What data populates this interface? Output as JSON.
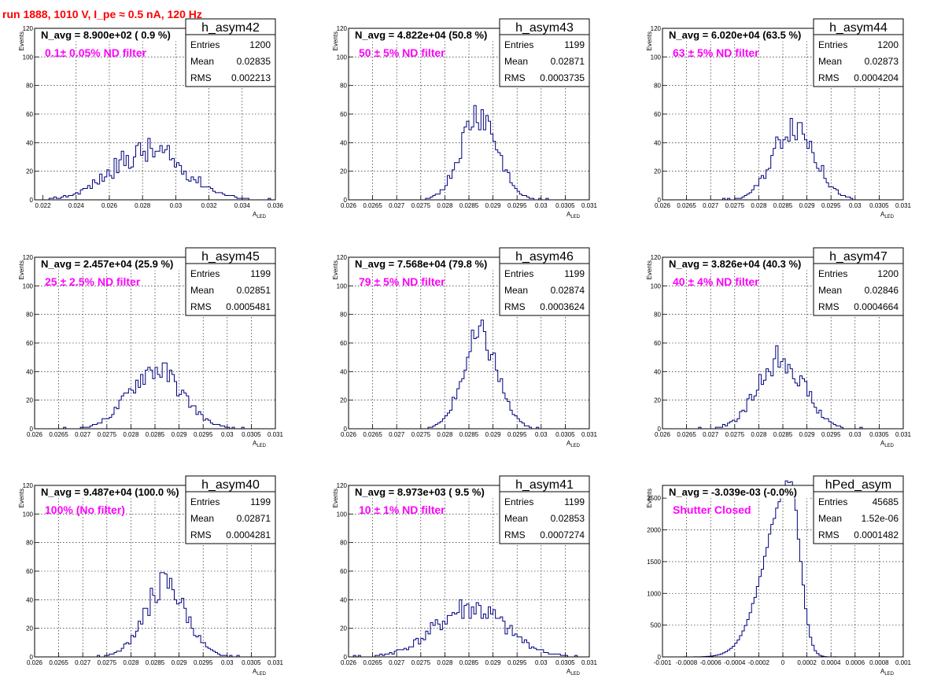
{
  "run_title": "run 1888,  1010 V, I_pe ≈ 0.5 nA, 120 Hz",
  "x_label_main": "A",
  "x_label_sub": "LED",
  "y_label": "Events",
  "stats_labels": [
    "Entries",
    "Mean",
    "RMS"
  ],
  "colors": {
    "hist": "#00007f",
    "title": "#ff0000",
    "annotation": "#ff00ff",
    "grid": "#000000"
  },
  "chart_data": [
    {
      "type": "bar",
      "name": "h_asym42",
      "navg": "N_avg = 8.900e+02 ( 0.9 %)",
      "annotation": "0.1± 0.05% ND filter",
      "entries": "1200",
      "mean": "0.02835",
      "rms": "0.002213",
      "xlim": [
        0.0215,
        0.036
      ],
      "ylim": [
        0,
        120
      ],
      "xticks": [
        0.022,
        0.024,
        0.026,
        0.028,
        0.03,
        0.032,
        0.034,
        0.036
      ],
      "xtick_labels": [
        "0.022",
        "0.024",
        "0.026",
        "0.028",
        "0.03",
        "0.032",
        "0.034",
        "0.036"
      ],
      "yticks": [
        0,
        20,
        40,
        60,
        80,
        100,
        120
      ],
      "ytick_labels": [
        "0",
        "20",
        "40",
        "60",
        "80",
        "100",
        "120"
      ],
      "grid": true,
      "dist": {
        "center": 0.02835,
        "sigma": 0.0022,
        "amp": 34,
        "n": 100,
        "seed": 42,
        "noise": 0.3,
        "start": 0.0215,
        "end": 0.036
      }
    },
    {
      "type": "bar",
      "name": "h_asym43",
      "navg": "N_avg = 4.822e+04 (50.8 %)",
      "annotation": "50 ± 5% ND filter",
      "entries": "1199",
      "mean": "0.02871",
      "rms": "0.0003735",
      "xlim": [
        0.026,
        0.031
      ],
      "ylim": [
        0,
        120
      ],
      "xticks": [
        0.026,
        0.0265,
        0.027,
        0.0275,
        0.028,
        0.0285,
        0.029,
        0.0295,
        0.03,
        0.0305,
        0.031
      ],
      "xtick_labels": [
        "0.026",
        "0.0265",
        "0.027",
        "0.0275",
        "0.028",
        "0.0285",
        "0.029",
        "0.0295",
        "0.03",
        "0.0305",
        "0.031"
      ],
      "yticks": [
        0,
        20,
        40,
        60,
        80,
        100,
        120
      ],
      "ytick_labels": [
        "0",
        "20",
        "40",
        "60",
        "80",
        "100",
        "120"
      ],
      "grid": true,
      "dist": {
        "center": 0.02871,
        "sigma": 0.000374,
        "amp": 62,
        "n": 100,
        "seed": 43,
        "noise": 0.22,
        "start": 0.026,
        "end": 0.031
      }
    },
    {
      "type": "bar",
      "name": "h_asym44",
      "navg": "N_avg = 6.020e+04 (63.5 %)",
      "annotation": "63 ± 5% ND filter",
      "entries": "1200",
      "mean": "0.02873",
      "rms": "0.0004204",
      "xlim": [
        0.026,
        0.031
      ],
      "ylim": [
        0,
        120
      ],
      "xticks": [
        0.026,
        0.0265,
        0.027,
        0.0275,
        0.028,
        0.0285,
        0.029,
        0.0295,
        0.03,
        0.0305,
        0.031
      ],
      "xtick_labels": [
        "0.026",
        "0.0265",
        "0.027",
        "0.0275",
        "0.028",
        "0.0285",
        "0.029",
        "0.0295",
        "0.03",
        "0.0305",
        "0.031"
      ],
      "yticks": [
        0,
        20,
        40,
        60,
        80,
        100,
        120
      ],
      "ytick_labels": [
        "0",
        "20",
        "40",
        "60",
        "80",
        "100",
        "120"
      ],
      "grid": true,
      "dist": {
        "center": 0.02873,
        "sigma": 0.00042,
        "amp": 54,
        "n": 100,
        "seed": 44,
        "noise": 0.22,
        "start": 0.026,
        "end": 0.031
      }
    },
    {
      "type": "bar",
      "name": "h_asym45",
      "navg": "N_avg = 2.457e+04 (25.9 %)",
      "annotation": "25 ± 2.5% ND filter",
      "entries": "1199",
      "mean": "0.02851",
      "rms": "0.0005481",
      "xlim": [
        0.026,
        0.031
      ],
      "ylim": [
        0,
        120
      ],
      "xticks": [
        0.026,
        0.0265,
        0.027,
        0.0275,
        0.028,
        0.0285,
        0.029,
        0.0295,
        0.03,
        0.0305,
        0.031
      ],
      "xtick_labels": [
        "0.026",
        "0.0265",
        "0.027",
        "0.0275",
        "0.028",
        "0.0285",
        "0.029",
        "0.0295",
        "0.03",
        "0.0305",
        "0.031"
      ],
      "yticks": [
        0,
        20,
        40,
        60,
        80,
        100,
        120
      ],
      "ytick_labels": [
        "0",
        "20",
        "40",
        "60",
        "80",
        "100",
        "120"
      ],
      "grid": true,
      "dist": {
        "center": 0.02851,
        "sigma": 0.00055,
        "amp": 42,
        "n": 100,
        "seed": 45,
        "noise": 0.22,
        "start": 0.026,
        "end": 0.031
      }
    },
    {
      "type": "bar",
      "name": "h_asym46",
      "navg": "N_avg = 7.568e+04 (79.8 %)",
      "annotation": "79 ± 5% ND filter",
      "entries": "1199",
      "mean": "0.02874",
      "rms": "0.0003624",
      "xlim": [
        0.026,
        0.031
      ],
      "ylim": [
        0,
        120
      ],
      "xticks": [
        0.026,
        0.0265,
        0.027,
        0.0275,
        0.028,
        0.0285,
        0.029,
        0.0295,
        0.03,
        0.0305,
        0.031
      ],
      "xtick_labels": [
        "0.026",
        "0.0265",
        "0.027",
        "0.0275",
        "0.028",
        "0.0285",
        "0.029",
        "0.0295",
        "0.03",
        "0.0305",
        "0.031"
      ],
      "yticks": [
        0,
        20,
        40,
        60,
        80,
        100,
        120
      ],
      "ytick_labels": [
        "0",
        "20",
        "40",
        "60",
        "80",
        "100",
        "120"
      ],
      "grid": true,
      "dist": {
        "center": 0.02874,
        "sigma": 0.00036,
        "amp": 64,
        "n": 100,
        "seed": 46,
        "noise": 0.2,
        "start": 0.026,
        "end": 0.031
      }
    },
    {
      "type": "bar",
      "name": "h_asym47",
      "navg": "N_avg = 3.826e+04 (40.3 %)",
      "annotation": "40 ± 4% ND filter",
      "entries": "1200",
      "mean": "0.02846",
      "rms": "0.0004664",
      "xlim": [
        0.026,
        0.031
      ],
      "ylim": [
        0,
        120
      ],
      "xticks": [
        0.026,
        0.0265,
        0.027,
        0.0275,
        0.028,
        0.0285,
        0.029,
        0.0295,
        0.03,
        0.0305,
        0.031
      ],
      "xtick_labels": [
        "0.026",
        "0.0265",
        "0.027",
        "0.0275",
        "0.028",
        "0.0285",
        "0.029",
        "0.0295",
        "0.03",
        "0.0305",
        "0.031"
      ],
      "yticks": [
        0,
        20,
        40,
        60,
        80,
        100,
        120
      ],
      "ytick_labels": [
        "0",
        "20",
        "40",
        "60",
        "80",
        "100",
        "120"
      ],
      "grid": true,
      "dist": {
        "center": 0.02846,
        "sigma": 0.00047,
        "amp": 50,
        "n": 100,
        "seed": 47,
        "noise": 0.22,
        "start": 0.026,
        "end": 0.031
      }
    },
    {
      "type": "bar",
      "name": "h_asym40",
      "navg": "N_avg = 9.487e+04 (100.0 %)",
      "annotation": "100% (No filter)",
      "entries": "1199",
      "mean": "0.02871",
      "rms": "0.0004281",
      "xlim": [
        0.026,
        0.031
      ],
      "ylim": [
        0,
        120
      ],
      "xticks": [
        0.026,
        0.0265,
        0.027,
        0.0275,
        0.028,
        0.0285,
        0.029,
        0.0295,
        0.03,
        0.0305,
        0.031
      ],
      "xtick_labels": [
        "0.026",
        "0.0265",
        "0.027",
        "0.0275",
        "0.028",
        "0.0285",
        "0.029",
        "0.0295",
        "0.03",
        "0.0305",
        "0.031"
      ],
      "yticks": [
        0,
        20,
        40,
        60,
        80,
        100,
        120
      ],
      "ytick_labels": [
        "0",
        "20",
        "40",
        "60",
        "80",
        "100",
        "120"
      ],
      "grid": true,
      "dist": {
        "center": 0.02871,
        "sigma": 0.00043,
        "amp": 50,
        "n": 100,
        "seed": 40,
        "noise": 0.22,
        "start": 0.026,
        "end": 0.031
      }
    },
    {
      "type": "bar",
      "name": "h_asym41",
      "navg": "N_avg = 8.973e+03 ( 9.5 %)",
      "annotation": "10 ± 1% ND filter",
      "entries": "1199",
      "mean": "0.02853",
      "rms": "0.0007274",
      "xlim": [
        0.026,
        0.031
      ],
      "ylim": [
        0,
        120
      ],
      "xticks": [
        0.026,
        0.0265,
        0.027,
        0.0275,
        0.028,
        0.0285,
        0.029,
        0.0295,
        0.03,
        0.0305,
        0.031
      ],
      "xtick_labels": [
        "0.026",
        "0.0265",
        "0.027",
        "0.0275",
        "0.028",
        "0.0285",
        "0.029",
        "0.0295",
        "0.03",
        "0.0305",
        "0.031"
      ],
      "yticks": [
        0,
        20,
        40,
        60,
        80,
        100,
        120
      ],
      "ytick_labels": [
        "0",
        "20",
        "40",
        "60",
        "80",
        "100",
        "120"
      ],
      "grid": true,
      "dist": {
        "center": 0.02853,
        "sigma": 0.00073,
        "amp": 34,
        "n": 100,
        "seed": 41,
        "noise": 0.28,
        "start": 0.026,
        "end": 0.031
      }
    },
    {
      "type": "bar",
      "name": "hPed_asym",
      "navg": "N_avg = -3.039e-03 (-0.0%)",
      "annotation": "Shutter Closed",
      "entries": "45685",
      "mean": "1.52e-06",
      "rms": "0.0001482",
      "xlim": [
        -0.001,
        0.001
      ],
      "ylim": [
        0,
        2700
      ],
      "xticks": [
        -0.001,
        -0.0008,
        -0.0006,
        -0.0004,
        -0.0002,
        0,
        0.0002,
        0.0004,
        0.0006,
        0.0008,
        0.001
      ],
      "xtick_labels": [
        "-0.001",
        "-0.0008",
        "-0.0006",
        "-0.0004",
        "-0.0002",
        "0",
        "0.0002",
        "0.0004",
        "0.0006",
        "0.0008",
        "0.001"
      ],
      "yticks": [
        0,
        500,
        1000,
        1500,
        2000,
        2500
      ],
      "ytick_labels": [
        "0",
        "500",
        "1000",
        "1500",
        "2000",
        "2500"
      ],
      "grid": true,
      "dist": {
        "center": 6e-05,
        "sigma": 0.000148,
        "amp": 2750,
        "n": 100,
        "seed": 48,
        "noise": 0.03,
        "start": -0.001,
        "end": 0.001,
        "skewLeft": 1.35,
        "skewRight": 0.55
      }
    }
  ]
}
